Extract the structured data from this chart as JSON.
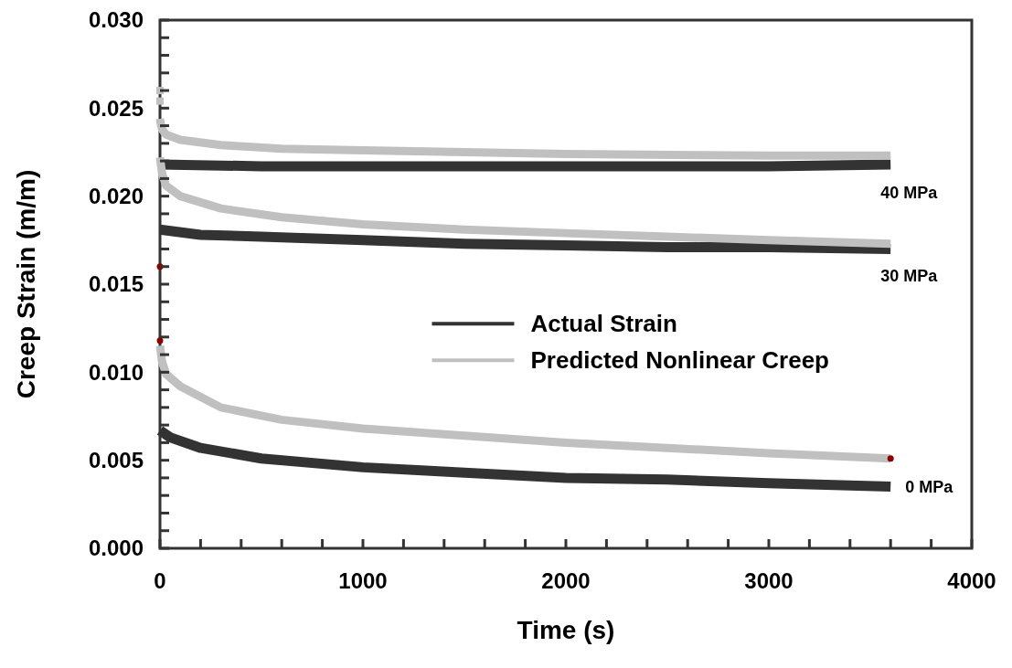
{
  "chart_data": {
    "type": "line",
    "xlabel": "Time (s)",
    "ylabel": "Creep Strain (m/m)",
    "xlim": [
      0,
      4000
    ],
    "xticks": [
      0,
      {
        "value": 200,
        "label": null
      },
      {
        "value": 400,
        "label": null
      },
      {
        "value": 600,
        "label": null
      },
      {
        "value": 800,
        "label": null
      },
      1000,
      {
        "value": 1200,
        "label": null
      },
      {
        "value": 1400,
        "label": null
      },
      {
        "value": 1600,
        "label": null
      },
      {
        "value": 1800,
        "label": null
      },
      2000,
      {
        "value": 2200,
        "label": null
      },
      {
        "value": 2400,
        "label": null
      },
      {
        "value": 2600,
        "label": null
      },
      {
        "value": 2800,
        "label": null
      },
      3000,
      {
        "value": 3200,
        "label": null
      },
      {
        "value": 3400,
        "label": null
      },
      {
        "value": 3600,
        "label": null
      },
      {
        "value": 3800,
        "label": null
      },
      4000
    ],
    "ylim": [
      0,
      0.03
    ],
    "yticks": [
      {
        "value": 0,
        "label": "0.000"
      },
      {
        "value": 0.001,
        "label": null
      },
      {
        "value": 0.002,
        "label": null
      },
      {
        "value": 0.003,
        "label": null
      },
      {
        "value": 0.004,
        "label": null
      },
      {
        "value": 0.005,
        "label": "0.005"
      },
      {
        "value": 0.006,
        "label": null
      },
      {
        "value": 0.007,
        "label": null
      },
      {
        "value": 0.008,
        "label": null
      },
      {
        "value": 0.009,
        "label": null
      },
      {
        "value": 0.01,
        "label": "0.010"
      },
      {
        "value": 0.011,
        "label": null
      },
      {
        "value": 0.012,
        "label": null
      },
      {
        "value": 0.013,
        "label": null
      },
      {
        "value": 0.014,
        "label": null
      },
      {
        "value": 0.015,
        "label": "0.015"
      },
      {
        "value": 0.016,
        "label": null
      },
      {
        "value": 0.017,
        "label": null
      },
      {
        "value": 0.018,
        "label": null
      },
      {
        "value": 0.019,
        "label": null
      },
      {
        "value": 0.02,
        "label": "0.020"
      },
      {
        "value": 0.021,
        "label": null
      },
      {
        "value": 0.022,
        "label": null
      },
      {
        "value": 0.023,
        "label": null
      },
      {
        "value": 0.024,
        "label": null
      },
      {
        "value": 0.025,
        "label": "0.025"
      },
      {
        "value": 0.026,
        "label": null
      },
      {
        "value": 0.027,
        "label": null
      },
      {
        "value": 0.028,
        "label": null
      },
      {
        "value": 0.029,
        "label": null
      },
      {
        "value": 0.03,
        "label": "0.030"
      }
    ],
    "grid": false,
    "legend": "right",
    "series": [
      {
        "name": "Actual Strain",
        "color": "#333333",
        "x": [
          0,
          500,
          1000,
          1500,
          2000,
          2500,
          3000,
          3600
        ],
        "values": [
          0.0218,
          0.0217,
          0.0217,
          0.0217,
          0.0217,
          0.0217,
          0.0217,
          0.0218
        ]
      },
      {
        "color": "#333333",
        "x": [
          0,
          200,
          500,
          1000,
          1500,
          2000,
          2500,
          3000,
          3600
        ],
        "values": [
          0.0181,
          0.0178,
          0.0177,
          0.0175,
          0.0173,
          0.0172,
          0.0171,
          0.0171,
          0.017
        ]
      },
      {
        "color": "#333333",
        "x": [
          0,
          50,
          200,
          500,
          1000,
          1500,
          2000,
          2500,
          3000,
          3600
        ],
        "values": [
          0.0067,
          0.0063,
          0.0057,
          0.0051,
          0.0046,
          0.0043,
          0.004,
          0.0039,
          0.0037,
          0.0035
        ]
      },
      {
        "name": "Predicted Nonlinear Creep",
        "color": "#c0c0c0",
        "x": [
          0,
          2,
          10,
          30,
          100,
          300,
          600,
          1000,
          2000,
          3000,
          3600
        ],
        "values": [
          0.0244,
          0.0242,
          0.0238,
          0.0235,
          0.0232,
          0.0229,
          0.0227,
          0.0226,
          0.0224,
          0.0223,
          0.0223
        ]
      },
      {
        "color": "#c0c0c0",
        "x": [
          0,
          10,
          30,
          100,
          300,
          600,
          1000,
          1500,
          2000,
          2500,
          3000,
          3600
        ],
        "values": [
          0.0222,
          0.0213,
          0.0206,
          0.02,
          0.0193,
          0.0188,
          0.0184,
          0.0181,
          0.0179,
          0.0177,
          0.0175,
          0.0173
        ]
      },
      {
        "color": "#c0c0c0",
        "x": [
          0,
          10,
          30,
          100,
          300,
          600,
          1000,
          1500,
          2000,
          2500,
          3000,
          3600
        ],
        "values": [
          0.0115,
          0.0106,
          0.0099,
          0.0092,
          0.008,
          0.0073,
          0.0068,
          0.0064,
          0.006,
          0.0057,
          0.0054,
          0.0051
        ]
      },
      {
        "type": "scatter",
        "color": "#c0c0c0",
        "marker": "square",
        "x": [
          0,
          0
        ],
        "values": [
          0.026,
          0.0254
        ]
      },
      {
        "type": "scatter",
        "color": "#8b0000",
        "marker": "circle",
        "x": [
          0,
          0,
          3600
        ],
        "values": [
          0.016,
          0.0118,
          0.0051
        ]
      }
    ],
    "annotations": [
      "40 MPa",
      "30 MPa",
      "0 MPa"
    ]
  }
}
